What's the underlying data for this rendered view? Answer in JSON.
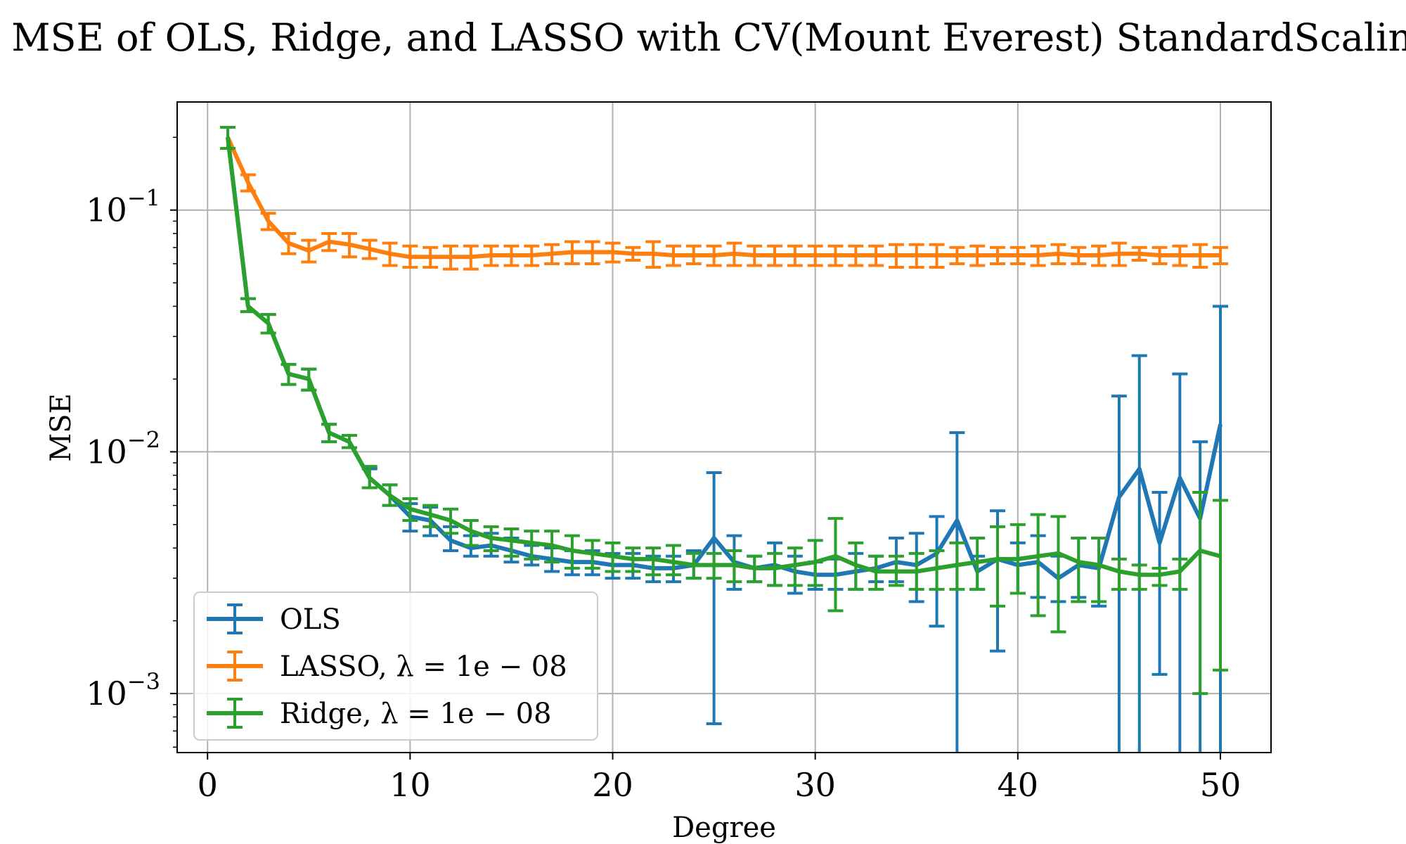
{
  "chart_data": {
    "type": "line",
    "title": "MSE of OLS, Ridge, and LASSO with CV(Mount Everest) StandardScaling",
    "xlabel": "Degree",
    "ylabel": "MSE",
    "xlim": [
      -1.5,
      52.5
    ],
    "ylim": [
      0.00057,
      0.28
    ],
    "yscale": "log",
    "grid": true,
    "legend_placement": "lower-left",
    "x_ticks": [
      0,
      10,
      20,
      30,
      40,
      50
    ],
    "x_tick_labels": [
      "0",
      "10",
      "20",
      "30",
      "40",
      "50"
    ],
    "y_ticks": [
      0.001,
      0.01,
      0.1
    ],
    "y_tick_labels": [
      {
        "base": "10",
        "exp": "−3"
      },
      {
        "base": "10",
        "exp": "−2"
      },
      {
        "base": "10",
        "exp": "−1"
      }
    ],
    "x": [
      1,
      2,
      3,
      4,
      5,
      6,
      7,
      8,
      9,
      10,
      11,
      12,
      13,
      14,
      15,
      16,
      17,
      18,
      19,
      20,
      21,
      22,
      23,
      24,
      25,
      26,
      27,
      28,
      29,
      30,
      31,
      32,
      33,
      34,
      35,
      36,
      37,
      38,
      39,
      40,
      41,
      42,
      43,
      44,
      45,
      46,
      47,
      48,
      49,
      50
    ],
    "series": [
      {
        "name": "OLS",
        "color": "#1f77b4",
        "values": [
          0.2,
          0.04,
          0.034,
          0.021,
          0.02,
          0.012,
          0.011,
          0.0078,
          0.0066,
          0.0054,
          0.0052,
          0.0043,
          0.004,
          0.0041,
          0.0039,
          0.0037,
          0.0036,
          0.0035,
          0.0035,
          0.0034,
          0.0034,
          0.0033,
          0.0033,
          0.0034,
          0.0044,
          0.0035,
          0.0033,
          0.0034,
          0.0032,
          0.0031,
          0.0031,
          0.0032,
          0.0033,
          0.0035,
          0.0034,
          0.0038,
          0.0052,
          0.0032,
          0.0036,
          0.0034,
          0.0035,
          0.003,
          0.0034,
          0.0033,
          0.0065,
          0.0085,
          0.0042,
          0.0078,
          0.0053,
          0.013
        ],
        "err_low": [
          0.18,
          0.038,
          0.031,
          0.019,
          0.018,
          0.011,
          0.0104,
          0.0071,
          0.006,
          0.0047,
          0.0045,
          0.0039,
          0.0037,
          0.0037,
          0.0035,
          0.0034,
          0.0032,
          0.0031,
          0.0031,
          0.003,
          0.003,
          0.0029,
          0.0029,
          0.003,
          0.00075,
          0.0027,
          0.0029,
          0.0028,
          0.0026,
          0.0027,
          0.0027,
          0.0027,
          0.0029,
          0.0029,
          0.0024,
          0.0019,
          0.0003,
          0.0027,
          0.0015,
          0.0026,
          0.0025,
          0.0024,
          0.0025,
          0.0023,
          0.0003,
          0.0003,
          0.0012,
          0.0003,
          0.0003,
          0.0003
        ],
        "err_high": [
          0.22,
          0.043,
          0.037,
          0.023,
          0.022,
          0.013,
          0.0117,
          0.0085,
          0.0073,
          0.0061,
          0.0059,
          0.0049,
          0.0045,
          0.0046,
          0.0044,
          0.0041,
          0.004,
          0.0039,
          0.0039,
          0.0038,
          0.0038,
          0.0037,
          0.0037,
          0.0039,
          0.0082,
          0.0045,
          0.0037,
          0.0042,
          0.0037,
          0.0035,
          0.0036,
          0.0038,
          0.0037,
          0.0044,
          0.0046,
          0.0054,
          0.012,
          0.0037,
          0.0057,
          0.0042,
          0.0045,
          0.0037,
          0.0044,
          0.0044,
          0.017,
          0.025,
          0.0068,
          0.021,
          0.011,
          0.04
        ]
      },
      {
        "name": "LASSO, λ = 1e − 08",
        "color": "#ff7f0e",
        "values": [
          0.2,
          0.13,
          0.09,
          0.073,
          0.068,
          0.074,
          0.072,
          0.069,
          0.066,
          0.064,
          0.064,
          0.064,
          0.064,
          0.065,
          0.065,
          0.065,
          0.066,
          0.067,
          0.067,
          0.067,
          0.066,
          0.066,
          0.065,
          0.065,
          0.065,
          0.066,
          0.065,
          0.065,
          0.065,
          0.065,
          0.065,
          0.065,
          0.065,
          0.065,
          0.065,
          0.065,
          0.065,
          0.065,
          0.065,
          0.065,
          0.065,
          0.066,
          0.065,
          0.065,
          0.066,
          0.066,
          0.065,
          0.065,
          0.065,
          0.065
        ],
        "err_low": [
          0.18,
          0.12,
          0.083,
          0.066,
          0.061,
          0.068,
          0.064,
          0.063,
          0.059,
          0.058,
          0.058,
          0.057,
          0.057,
          0.059,
          0.059,
          0.059,
          0.06,
          0.06,
          0.06,
          0.061,
          0.062,
          0.058,
          0.059,
          0.06,
          0.059,
          0.059,
          0.059,
          0.059,
          0.059,
          0.059,
          0.059,
          0.059,
          0.059,
          0.058,
          0.058,
          0.058,
          0.06,
          0.059,
          0.06,
          0.06,
          0.059,
          0.06,
          0.06,
          0.059,
          0.059,
          0.062,
          0.06,
          0.059,
          0.058,
          0.06
        ],
        "err_high": [
          0.22,
          0.14,
          0.097,
          0.08,
          0.075,
          0.08,
          0.08,
          0.075,
          0.073,
          0.071,
          0.07,
          0.071,
          0.071,
          0.071,
          0.071,
          0.071,
          0.072,
          0.074,
          0.074,
          0.073,
          0.07,
          0.074,
          0.071,
          0.071,
          0.071,
          0.073,
          0.071,
          0.071,
          0.071,
          0.071,
          0.071,
          0.071,
          0.071,
          0.072,
          0.072,
          0.072,
          0.07,
          0.071,
          0.07,
          0.07,
          0.071,
          0.072,
          0.07,
          0.071,
          0.073,
          0.07,
          0.07,
          0.071,
          0.072,
          0.07
        ]
      },
      {
        "name": "Ridge, λ = 1e − 08",
        "color": "#2ca02c",
        "values": [
          0.2,
          0.04,
          0.034,
          0.021,
          0.02,
          0.012,
          0.011,
          0.0078,
          0.0066,
          0.0058,
          0.0055,
          0.0052,
          0.0047,
          0.0044,
          0.0043,
          0.0042,
          0.0041,
          0.0039,
          0.0038,
          0.0037,
          0.0036,
          0.0036,
          0.0035,
          0.0034,
          0.0034,
          0.0034,
          0.0033,
          0.0033,
          0.0034,
          0.0035,
          0.0037,
          0.0034,
          0.0032,
          0.0032,
          0.0032,
          0.0033,
          0.0034,
          0.0035,
          0.0036,
          0.0036,
          0.0037,
          0.0038,
          0.0035,
          0.0034,
          0.0032,
          0.0031,
          0.0031,
          0.0032,
          0.0039,
          0.0037
        ],
        "err_low": [
          0.18,
          0.038,
          0.031,
          0.019,
          0.018,
          0.011,
          0.0104,
          0.0071,
          0.006,
          0.0052,
          0.0049,
          0.0046,
          0.0041,
          0.0039,
          0.0037,
          0.0036,
          0.0035,
          0.0033,
          0.0033,
          0.0032,
          0.0032,
          0.0031,
          0.0031,
          0.003,
          0.003,
          0.0029,
          0.0029,
          0.0028,
          0.0028,
          0.0028,
          0.0022,
          0.0027,
          0.0027,
          0.0028,
          0.0027,
          0.0027,
          0.0027,
          0.0027,
          0.0023,
          0.0026,
          0.0021,
          0.0018,
          0.0024,
          0.0024,
          0.0027,
          0.0027,
          0.0028,
          0.0027,
          0.001,
          0.00125
        ],
        "err_high": [
          0.22,
          0.043,
          0.037,
          0.023,
          0.022,
          0.013,
          0.0117,
          0.0087,
          0.0073,
          0.0064,
          0.006,
          0.0058,
          0.0052,
          0.0049,
          0.0048,
          0.0047,
          0.0047,
          0.0045,
          0.0043,
          0.0042,
          0.004,
          0.004,
          0.0041,
          0.0038,
          0.0038,
          0.0039,
          0.0037,
          0.0038,
          0.004,
          0.0043,
          0.0053,
          0.0042,
          0.0037,
          0.0037,
          0.0038,
          0.0039,
          0.0042,
          0.0044,
          0.0049,
          0.005,
          0.0055,
          0.0054,
          0.0044,
          0.0044,
          0.0036,
          0.0034,
          0.0033,
          0.0036,
          0.0068,
          0.0063
        ]
      }
    ]
  }
}
